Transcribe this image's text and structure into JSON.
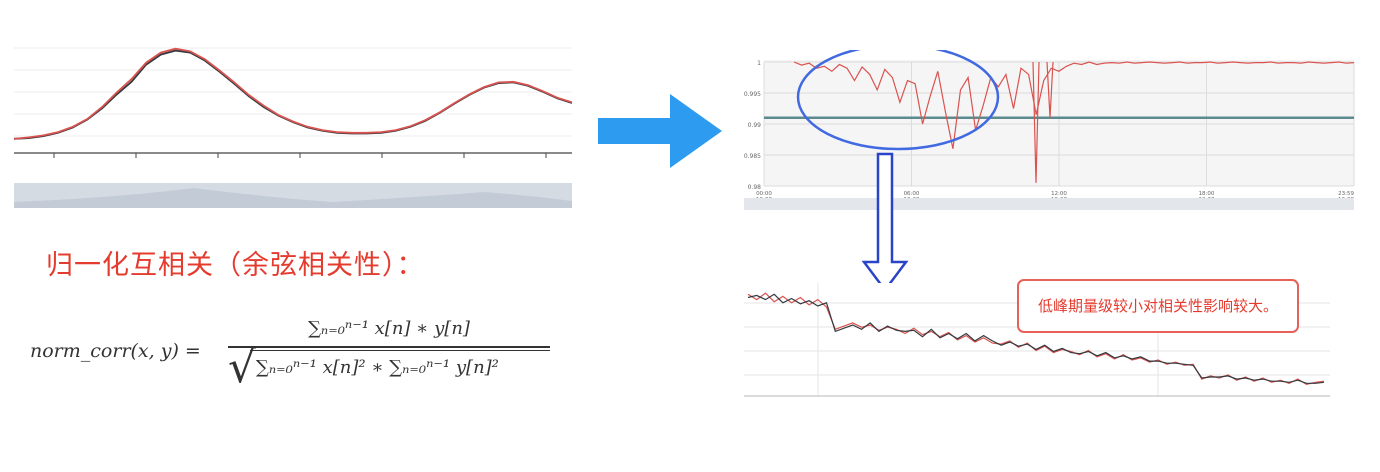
{
  "heading": "归一化互相关（余弦相关性）：",
  "formula": {
    "lhs": "norm_corr(x, y) =",
    "numerator": "∑ₙ₌₀ⁿ⁻¹ x[n] ∗ y[n]",
    "denominator": "∑ₙ₌₀ⁿ⁻¹ x[n]² ∗ ∑ₙ₌₀ⁿ⁻¹ y[n]²",
    "sqrt": "√"
  },
  "annotation": "低峰期量级较小对相关性影响较大。",
  "colors": {
    "series_red": "#d9534f",
    "series_dark": "#333a40",
    "threshold_line": "#5d8a8f",
    "arrow_blue": "#2d9bf0",
    "ellipse_blue": "#4169e1",
    "heading_red": "#e53b2e"
  },
  "chart_data": [
    {
      "type": "line",
      "series": [
        {
          "values": [
            2,
            2.2,
            2.5,
            3,
            3.8,
            5,
            6.8,
            9,
            11,
            13.5,
            15,
            15.6,
            15.2,
            14,
            12.3,
            10.5,
            8.6,
            7,
            5.6,
            4.6,
            3.8,
            3.3,
            3,
            2.9,
            2.9,
            3,
            3.3,
            3.9,
            4.8,
            6,
            7.4,
            8.7,
            9.8,
            10.5,
            10.6,
            10.1,
            9.2,
            8.2,
            7.5
          ]
        },
        {
          "values": [
            2,
            2.1,
            2.4,
            2.9,
            3.7,
            4.9,
            6.6,
            8.7,
            10.6,
            13.2,
            14.7,
            15.3,
            15,
            13.8,
            12.1,
            10.3,
            8.4,
            6.8,
            5.5,
            4.5,
            3.7,
            3.2,
            2.9,
            2.8,
            2.8,
            2.9,
            3.2,
            3.8,
            4.7,
            5.9,
            7.3,
            8.6,
            9.7,
            10.4,
            10.5,
            10,
            9.1,
            8.1,
            7.4
          ]
        }
      ]
    },
    {
      "type": "line",
      "y_ticks": [
        "1",
        "0.995",
        "0.99",
        "0.985",
        "0.98"
      ],
      "ylim": [
        0.98,
        1
      ],
      "x_ticks": [
        {
          "time": "00:00",
          "date": "10-28"
        },
        {
          "time": "06:00",
          "date": "10-28"
        },
        {
          "time": "12:00",
          "date": "10-28"
        },
        {
          "time": "18:00",
          "date": "10-28"
        },
        {
          "time": "23:59",
          "date": "10-28"
        }
      ],
      "threshold": 0.991,
      "series": [
        {
          "values": [
            1,
            0.9995,
            0.9998,
            0.999,
            0.9993,
            0.9985,
            0.9996,
            0.999,
            0.997,
            0.9992,
            0.998,
            0.9955,
            0.9988,
            0.9975,
            0.9935,
            0.997,
            0.9965,
            0.99,
            0.9945,
            0.9985,
            0.992,
            0.986,
            0.9955,
            0.9975,
            0.989,
            0.993,
            0.9975,
            0.996,
            0.998,
            0.9925,
            0.999,
            0.998,
            0.9915,
            0.997,
            0.999,
            0.9985,
            0.9993,
            0.9998,
            0.9996,
            1,
            0.9996,
            0.9998,
            0.9999,
            0.9998,
            1,
            0.9998,
            0.9999,
            1,
            0.9999,
            0.9998,
            0.9999,
            1,
            0.9998,
            0.9999,
            0.9999,
            1,
            0.9998,
            0.9999,
            1,
            0.9999,
            0.9998,
            0.9999,
            0.9999,
            1,
            0.9998,
            0.9999,
            0.9999,
            0.9998,
            1,
            0.9999,
            0.9998,
            0.9999,
            1,
            0.9998,
            0.9999
          ]
        }
      ]
    },
    {
      "type": "line",
      "series": [
        {
          "values": [
            9.5,
            9,
            9.6,
            8.8,
            9.3,
            8.7,
            9.2,
            8.5,
            9,
            8.3,
            6.2,
            6.5,
            6.8,
            6.4,
            6.6,
            6.1,
            6.4,
            6.2,
            5.8,
            6.3,
            5.7,
            6,
            5.5,
            5.9,
            5.2,
            5.6,
            5,
            5.4,
            4.9,
            4.8,
            5.1,
            4.5,
            4.9,
            4.2,
            4.6,
            4,
            4.3,
            4.1,
            3.8,
            4.2,
            3.6,
            3.9,
            3.4,
            3.8,
            3.3,
            3.5,
            3.1,
            3.3,
            2.9,
            3.1,
            2.8,
            2.9,
            1.5,
            1.8,
            1.6,
            1.9,
            1.4,
            1.7,
            1.3,
            1.6,
            1.2,
            1.4,
            1.1,
            1.5,
            1,
            1.2,
            1.3
          ]
        },
        {
          "values": [
            9.2,
            9.4,
            9,
            9.5,
            8.7,
            9.1,
            8.6,
            8.9,
            8.4,
            8.7,
            6,
            6.3,
            6.6,
            6.2,
            6.8,
            6,
            6.5,
            6.1,
            6,
            6.1,
            5.5,
            6.2,
            5.4,
            5.8,
            5.3,
            5.8,
            5.1,
            5.6,
            5.1,
            4.7,
            5,
            4.6,
            4.8,
            4.3,
            4.7,
            4.1,
            4.4,
            4,
            3.9,
            4.1,
            3.7,
            4,
            3.5,
            3.7,
            3.4,
            3.6,
            3.2,
            3.2,
            3,
            3,
            2.9,
            2.8,
            1.6,
            1.7,
            1.7,
            1.8,
            1.5,
            1.6,
            1.4,
            1.5,
            1.3,
            1.3,
            1.2,
            1.4,
            1.1,
            1.1,
            1.2
          ]
        }
      ]
    }
  ]
}
